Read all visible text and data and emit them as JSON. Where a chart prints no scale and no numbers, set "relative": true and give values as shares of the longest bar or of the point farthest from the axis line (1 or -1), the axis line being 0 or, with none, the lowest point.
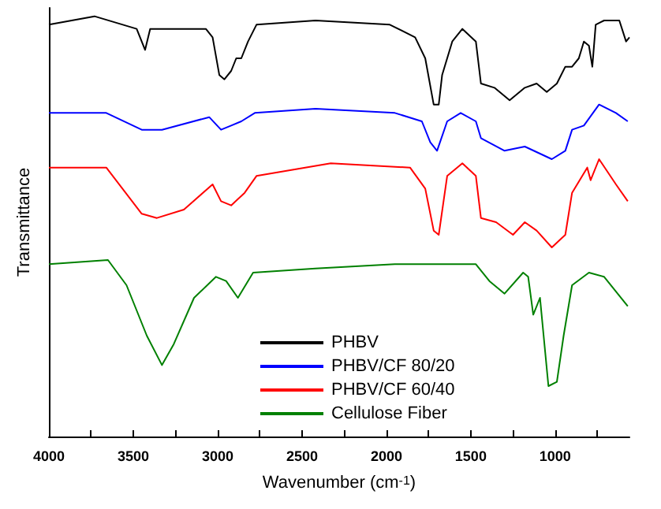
{
  "chart_data": {
    "type": "line",
    "relative": true,
    "xlabel": "Wavenumber (cm$^{-1}$)",
    "ylabel": "Transmittance",
    "legend": "bottom",
    "grid": false,
    "marker": "none",
    "line_style": "solid",
    "xlim": [
      4000,
      560
    ],
    "xticks": [
      4000,
      {
        "value": 3750,
        "label": null
      },
      3500,
      {
        "value": 3250,
        "label": null
      },
      3000,
      {
        "value": 2750,
        "label": null
      },
      2500,
      {
        "value": 2250,
        "label": null
      },
      2000,
      {
        "value": 1750,
        "label": null
      },
      1500,
      {
        "value": 1250,
        "label": null
      },
      1000,
      {
        "value": 750,
        "label": null
      }
    ],
    "series": [
      {
        "name": "PHBV",
        "color": "#000000",
        "x": [
          4000,
          3730,
          3480,
          3430,
          3400,
          3070,
          3030,
          2990,
          2960,
          2920,
          2890,
          2860,
          2820,
          2770,
          2420,
          1980,
          1830,
          1770,
          1720,
          1690,
          1670,
          1610,
          1550,
          1470,
          1440,
          1360,
          1270,
          1180,
          1110,
          1050,
          990,
          940,
          900,
          860,
          830,
          800,
          780,
          760,
          710,
          620,
          580,
          560
        ],
        "values": [
          0.98,
          1.0,
          0.97,
          0.92,
          0.97,
          0.97,
          0.95,
          0.86,
          0.85,
          0.87,
          0.9,
          0.9,
          0.94,
          0.98,
          0.99,
          0.98,
          0.95,
          0.9,
          0.79,
          0.79,
          0.86,
          0.94,
          0.97,
          0.94,
          0.84,
          0.83,
          0.8,
          0.83,
          0.84,
          0.82,
          0.84,
          0.88,
          0.88,
          0.9,
          0.94,
          0.93,
          0.88,
          0.98,
          0.99,
          0.99,
          0.94,
          0.95
        ]
      },
      {
        "name": "PHBV/CF 80/20",
        "color": "#0000ff",
        "x": [
          4000,
          3660,
          3450,
          3330,
          3050,
          2980,
          2920,
          2860,
          2780,
          2420,
          1950,
          1790,
          1740,
          1700,
          1640,
          1560,
          1470,
          1440,
          1300,
          1180,
          1020,
          940,
          900,
          830,
          740,
          640,
          570
        ],
        "values": [
          0.77,
          0.77,
          0.73,
          0.73,
          0.76,
          0.73,
          0.74,
          0.75,
          0.77,
          0.78,
          0.77,
          0.75,
          0.7,
          0.68,
          0.75,
          0.77,
          0.75,
          0.71,
          0.68,
          0.69,
          0.66,
          0.68,
          0.73,
          0.74,
          0.79,
          0.77,
          0.75
        ]
      },
      {
        "name": "PHBV/CF 60/40",
        "color": "#ff0000",
        "x": [
          4000,
          3660,
          3450,
          3360,
          3200,
          3030,
          2980,
          2920,
          2840,
          2770,
          2330,
          1860,
          1770,
          1720,
          1690,
          1640,
          1550,
          1470,
          1440,
          1350,
          1250,
          1180,
          1110,
          1020,
          940,
          900,
          810,
          790,
          740,
          640,
          570
        ],
        "values": [
          0.64,
          0.64,
          0.53,
          0.52,
          0.54,
          0.6,
          0.56,
          0.55,
          0.58,
          0.62,
          0.65,
          0.64,
          0.59,
          0.49,
          0.48,
          0.62,
          0.65,
          0.62,
          0.52,
          0.51,
          0.48,
          0.51,
          0.49,
          0.45,
          0.48,
          0.58,
          0.64,
          0.61,
          0.66,
          0.6,
          0.56
        ]
      },
      {
        "name": "Cellulose Fiber",
        "color": "#008000",
        "x": [
          4000,
          3650,
          3540,
          3420,
          3330,
          3260,
          3140,
          3010,
          2950,
          2880,
          2790,
          2420,
          1950,
          1470,
          1390,
          1300,
          1190,
          1160,
          1130,
          1090,
          1040,
          990,
          950,
          900,
          800,
          710,
          570
        ],
        "values": [
          0.41,
          0.42,
          0.36,
          0.24,
          0.17,
          0.22,
          0.33,
          0.38,
          0.37,
          0.33,
          0.39,
          0.4,
          0.41,
          0.41,
          0.37,
          0.34,
          0.39,
          0.38,
          0.29,
          0.33,
          0.12,
          0.13,
          0.24,
          0.36,
          0.39,
          0.38,
          0.31
        ]
      }
    ]
  }
}
